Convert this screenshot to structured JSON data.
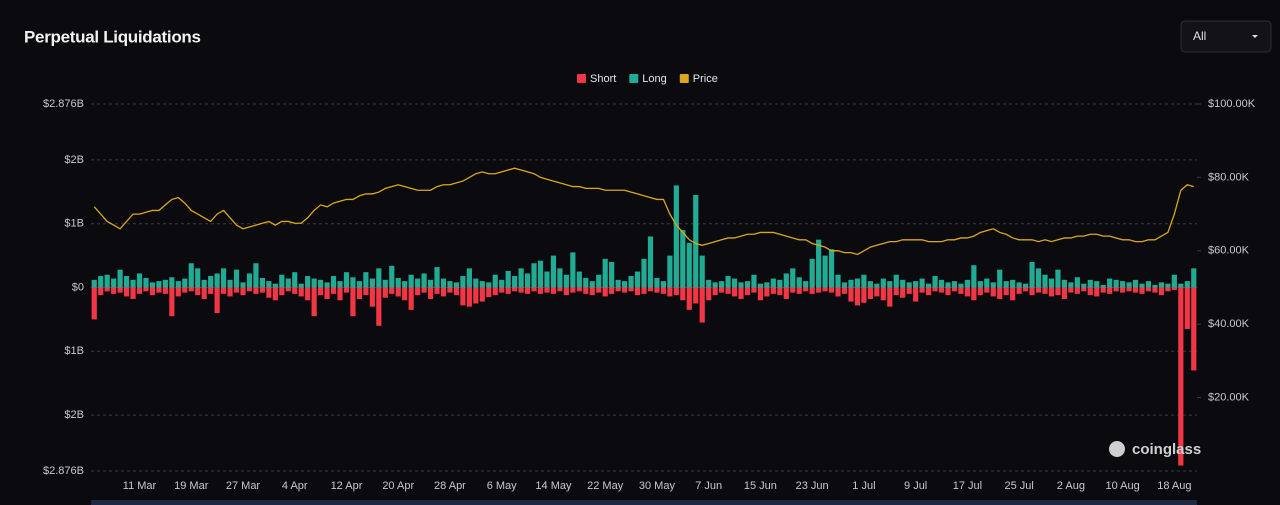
{
  "header": {
    "title": "Perpetual Liquidations",
    "dropdown": "All"
  },
  "watermark": "coinglass",
  "chart_data": {
    "type": "bar",
    "categories": [
      null,
      null,
      null,
      null,
      null,
      null,
      null,
      "11 Mar",
      null,
      null,
      null,
      null,
      null,
      null,
      null,
      "19 Mar",
      null,
      null,
      null,
      null,
      null,
      null,
      null,
      "27 Mar",
      null,
      null,
      null,
      null,
      null,
      null,
      null,
      "4 Apr",
      null,
      null,
      null,
      null,
      null,
      null,
      null,
      "12 Apr",
      null,
      null,
      null,
      null,
      null,
      null,
      null,
      "20 Apr",
      null,
      null,
      null,
      null,
      null,
      null,
      null,
      "28 Apr",
      null,
      null,
      null,
      null,
      null,
      null,
      null,
      "6 May",
      null,
      null,
      null,
      null,
      null,
      null,
      null,
      "14 May",
      null,
      null,
      null,
      null,
      null,
      null,
      null,
      "22 May",
      null,
      null,
      null,
      null,
      null,
      null,
      null,
      "30 May",
      null,
      null,
      null,
      null,
      null,
      null,
      null,
      "7 Jun",
      null,
      null,
      null,
      null,
      null,
      null,
      null,
      "15 Jun",
      null,
      null,
      null,
      null,
      null,
      null,
      null,
      "23 Jun",
      null,
      null,
      null,
      null,
      null,
      null,
      null,
      "1 Jul",
      null,
      null,
      null,
      null,
      null,
      null,
      null,
      "9 Jul",
      null,
      null,
      null,
      null,
      null,
      null,
      null,
      "17 Jul",
      null,
      null,
      null,
      null,
      null,
      null,
      null,
      "25 Jul",
      null,
      null,
      null,
      null,
      null,
      null,
      null,
      "2 Aug",
      null,
      null,
      null,
      null,
      null,
      null,
      null,
      "10 Aug",
      null,
      null,
      null,
      null,
      null,
      null,
      null,
      "18 Aug",
      null,
      null,
      null
    ],
    "series": [
      {
        "name": "Short",
        "color": "#f23645",
        "values": [
          -0.5,
          -0.12,
          -0.06,
          -0.1,
          -0.08,
          -0.14,
          -0.18,
          -0.1,
          -0.06,
          -0.12,
          -0.08,
          -0.1,
          -0.45,
          -0.14,
          -0.08,
          -0.06,
          -0.12,
          -0.18,
          -0.1,
          -0.4,
          -0.1,
          -0.14,
          -0.08,
          -0.12,
          -0.06,
          -0.1,
          -0.08,
          -0.16,
          -0.2,
          -0.12,
          -0.06,
          -0.1,
          -0.14,
          -0.2,
          -0.45,
          -0.12,
          -0.18,
          -0.1,
          -0.2,
          -0.08,
          -0.45,
          -0.18,
          -0.12,
          -0.3,
          -0.6,
          -0.16,
          -0.1,
          -0.14,
          -0.2,
          -0.35,
          -0.12,
          -0.08,
          -0.18,
          -0.1,
          -0.14,
          -0.08,
          -0.12,
          -0.28,
          -0.3,
          -0.25,
          -0.22,
          -0.15,
          -0.12,
          -0.08,
          -0.1,
          -0.06,
          -0.08,
          -0.1,
          -0.06,
          -0.1,
          -0.08,
          -0.1,
          -0.06,
          -0.12,
          -0.08,
          -0.06,
          -0.1,
          -0.12,
          -0.08,
          -0.14,
          -0.1,
          -0.06,
          -0.08,
          -0.06,
          -0.12,
          -0.1,
          -0.06,
          -0.08,
          -0.1,
          -0.14,
          -0.12,
          -0.2,
          -0.35,
          -0.25,
          -0.55,
          -0.2,
          -0.12,
          -0.08,
          -0.1,
          -0.14,
          -0.18,
          -0.12,
          -0.08,
          -0.2,
          -0.14,
          -0.1,
          -0.12,
          -0.18,
          -0.08,
          -0.1,
          -0.06,
          -0.1,
          -0.08,
          -0.06,
          -0.08,
          -0.14,
          -0.1,
          -0.22,
          -0.28,
          -0.24,
          -0.18,
          -0.14,
          -0.2,
          -0.3,
          -0.12,
          -0.16,
          -0.1,
          -0.22,
          -0.08,
          -0.12,
          -0.06,
          -0.08,
          -0.12,
          -0.06,
          -0.1,
          -0.14,
          -0.2,
          -0.12,
          -0.08,
          -0.14,
          -0.18,
          -0.12,
          -0.2,
          -0.1,
          -0.06,
          -0.12,
          -0.08,
          -0.1,
          -0.14,
          -0.12,
          -0.18,
          -0.08,
          -0.1,
          -0.06,
          -0.12,
          -0.14,
          -0.08,
          -0.1,
          -0.06,
          -0.08,
          -0.06,
          -0.08,
          -0.1,
          -0.06,
          -0.08,
          -0.12,
          -0.06,
          -0.04,
          -2.79,
          -0.65,
          -1.3
        ]
      },
      {
        "name": "Long",
        "color": "#22ab94",
        "values": [
          0.12,
          0.18,
          0.2,
          0.14,
          0.28,
          0.18,
          0.12,
          0.22,
          0.15,
          0.08,
          0.1,
          0.12,
          0.16,
          0.1,
          0.14,
          0.38,
          0.3,
          0.12,
          0.18,
          0.22,
          0.3,
          0.12,
          0.28,
          0.08,
          0.22,
          0.38,
          0.15,
          0.1,
          0.06,
          0.2,
          0.14,
          0.24,
          0.06,
          0.18,
          0.14,
          0.12,
          0.08,
          0.18,
          0.1,
          0.24,
          0.16,
          0.1,
          0.24,
          0.14,
          0.3,
          0.12,
          0.34,
          0.15,
          0.1,
          0.2,
          0.14,
          0.22,
          0.12,
          0.32,
          0.14,
          0.1,
          0.08,
          0.18,
          0.3,
          0.14,
          0.1,
          0.08,
          0.2,
          0.12,
          0.26,
          0.18,
          0.3,
          0.22,
          0.38,
          0.42,
          0.25,
          0.5,
          0.3,
          0.2,
          0.55,
          0.25,
          0.15,
          0.1,
          0.2,
          0.45,
          0.4,
          0.12,
          0.1,
          0.18,
          0.25,
          0.45,
          0.8,
          0.15,
          0.1,
          0.5,
          1.6,
          0.9,
          0.7,
          1.45,
          0.5,
          0.12,
          0.08,
          0.1,
          0.18,
          0.14,
          0.08,
          0.1,
          0.2,
          0.06,
          0.08,
          0.14,
          0.12,
          0.22,
          0.3,
          0.16,
          0.1,
          0.45,
          0.75,
          0.5,
          0.6,
          0.2,
          0.08,
          0.12,
          0.14,
          0.2,
          0.1,
          0.06,
          0.14,
          0.1,
          0.2,
          0.12,
          0.08,
          0.1,
          0.14,
          0.06,
          0.18,
          0.12,
          0.08,
          0.1,
          0.06,
          0.12,
          0.35,
          0.1,
          0.14,
          0.08,
          0.28,
          0.1,
          0.12,
          0.08,
          0.06,
          0.4,
          0.3,
          0.2,
          0.14,
          0.28,
          0.12,
          0.08,
          0.16,
          0.06,
          0.12,
          0.1,
          0.04,
          0.14,
          0.12,
          0.1,
          0.08,
          0.12,
          0.06,
          0.1,
          0.04,
          0.08,
          0.06,
          0.2,
          0.06,
          0.1,
          0.3
        ]
      },
      {
        "name": "Price",
        "color": "#d9a81e",
        "type": "line",
        "axis": "y2",
        "values": [
          72,
          70,
          68,
          67,
          66,
          68,
          70,
          70,
          70.5,
          71,
          71,
          72.5,
          74,
          74.5,
          73,
          71,
          70,
          69,
          68,
          70,
          71,
          69,
          67,
          66,
          66.5,
          67,
          67.5,
          68,
          67,
          68,
          68,
          67.5,
          67.5,
          69,
          71,
          72.5,
          72,
          73,
          73.5,
          74,
          74,
          75,
          75.5,
          75.5,
          76,
          77,
          77.5,
          78,
          77.5,
          77,
          76.5,
          76.5,
          76.5,
          77.5,
          78,
          78,
          78.5,
          79,
          80,
          81,
          81.5,
          81,
          81,
          81.5,
          82,
          82.5,
          82,
          81.5,
          81,
          80,
          79.5,
          79,
          78.5,
          78,
          77.5,
          77.5,
          77,
          77,
          77,
          76.5,
          76.5,
          76.5,
          76.5,
          76,
          75.5,
          75,
          74.5,
          74,
          74,
          70,
          67,
          65,
          63,
          62,
          61.5,
          62,
          62.5,
          63,
          63.5,
          63.5,
          64,
          64.5,
          64.5,
          65,
          65,
          65,
          64.5,
          64,
          63.5,
          63,
          63,
          62,
          61.5,
          61,
          60,
          60,
          59.5,
          59.5,
          59,
          60,
          61,
          61.5,
          62,
          62.5,
          62.5,
          63,
          63,
          63,
          63,
          62.5,
          62.5,
          62.5,
          63,
          63,
          63.5,
          63.5,
          64,
          65,
          65.5,
          66,
          65,
          64.5,
          63.5,
          63,
          63,
          63,
          62.5,
          63,
          62.5,
          63,
          63.5,
          63.5,
          64,
          64,
          64.5,
          64.5,
          64,
          64,
          63.5,
          63,
          63,
          62.5,
          62.5,
          63,
          63,
          64,
          65,
          70,
          76.5,
          78,
          77.5
        ]
      }
    ],
    "ylim": [
      -2.876,
      2.876
    ],
    "yticks": [
      {
        "value": 2.876,
        "label": "$2.876B"
      },
      {
        "value": 2,
        "label": "$2B"
      },
      {
        "value": 1,
        "label": "$1B"
      },
      {
        "value": 0,
        "label": "$0"
      },
      {
        "value": -1,
        "label": "$1B"
      },
      {
        "value": -2,
        "label": "$2B"
      },
      {
        "value": -2.876,
        "label": "$2.876B"
      }
    ],
    "y2lim": [
      0,
      100
    ],
    "y2ticks": [
      {
        "value": 100,
        "label": "$100.00K"
      },
      {
        "value": 80,
        "label": "$80.00K"
      },
      {
        "value": 60,
        "label": "$60.00K"
      },
      {
        "value": 40,
        "label": "$40.00K"
      },
      {
        "value": 20,
        "label": "$20.00K"
      }
    ],
    "grid": true,
    "legend": "top"
  }
}
